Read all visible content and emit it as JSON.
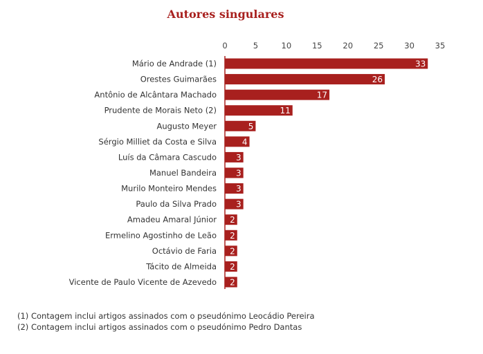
{
  "chart_data": {
    "type": "bar",
    "orientation": "horizontal",
    "title": "Autores singulares",
    "categories": [
      "Mário de Andrade (1)",
      "Orestes Guimarães",
      "Antônio de Alcântara Machado",
      "Prudente de Morais Neto (2)",
      "Augusto Meyer",
      "Sérgio Milliet da Costa e Silva",
      "Luís da Câmara Cascudo",
      "Manuel Bandeira",
      "Murilo Monteiro Mendes",
      "Paulo da Silva Prado",
      "Amadeu Amaral Júnior",
      "Ermelino Agostinho de Leão",
      "Octávio de Faria",
      "Tácito de Almeida",
      "Vicente de Paulo Vicente de Azevedo"
    ],
    "values": [
      33,
      26,
      17,
      11,
      5,
      4,
      3,
      3,
      3,
      3,
      2,
      2,
      2,
      2,
      2
    ],
    "xlim": [
      0,
      35
    ],
    "xticks": [
      0,
      5,
      10,
      15,
      20,
      25,
      30,
      35
    ],
    "axis_position": "top",
    "bar_color": "#a8201e",
    "notes": [
      "(1) Contagem inclui artigos assinados com o pseudónimo Leocádio Pereira",
      "(2) Contagem inclui artigos assinados com o pseudónimo Pedro Dantas"
    ]
  }
}
